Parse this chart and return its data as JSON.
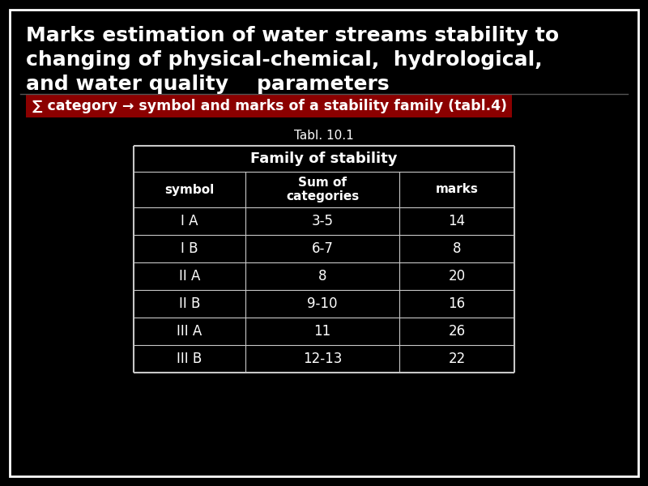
{
  "title_line1": "Marks estimation of water streams stability to",
  "title_line2": "changing of physical-chemical,  hydrological,",
  "title_line3": "and water quality    parameters",
  "subtitle_text": "∑ category → symbol and marks of a stability family (tabl.4)",
  "tabl_label": "Tabl. 10.1",
  "table_header_main": "Family of stability",
  "col_headers": [
    "symbol",
    "Sum of\ncategories",
    "marks"
  ],
  "rows": [
    [
      "I A",
      "3-5",
      "14"
    ],
    [
      "I B",
      "6-7",
      "8"
    ],
    [
      "II A",
      "8",
      "20"
    ],
    [
      "II B",
      "9-10",
      "16"
    ],
    [
      "III A",
      "11",
      "26"
    ],
    [
      "III B",
      "12-13",
      "22"
    ]
  ],
  "bg_color": "#000000",
  "outer_border_color": "#ffffff",
  "title_color": "#ffffff",
  "subtitle_bg": "#8b0000",
  "subtitle_text_color": "#ffffff",
  "table_border_color": "#c8c8c8",
  "table_text_color": "#ffffff",
  "tabl_label_color": "#ffffff",
  "separator_color": "#555555",
  "fig_width": 8.0,
  "fig_height": 6.0,
  "dpi": 100,
  "title_fontsize": 18,
  "subtitle_fontsize": 12.5,
  "tabl_fontsize": 11,
  "table_header_fontsize": 13,
  "col_header_fontsize": 11,
  "data_fontsize": 12
}
